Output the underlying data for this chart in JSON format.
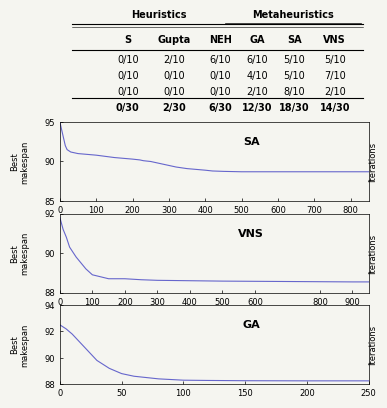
{
  "table_headers": [
    "S",
    "Gupta",
    "NEH",
    "GA",
    "SA",
    "VNS"
  ],
  "table_rows": [
    [
      "0/10",
      "2/10",
      "6/10",
      "6/10",
      "5/10",
      "5/10"
    ],
    [
      "0/10",
      "0/10",
      "0/10",
      "4/10",
      "5/10",
      "7/10"
    ],
    [
      "0/10",
      "0/10",
      "0/10",
      "2/10",
      "8/10",
      "2/10"
    ],
    [
      "0/30",
      "2/30",
      "6/30",
      "12/30",
      "18/30",
      "14/30"
    ]
  ],
  "sa_curve": {
    "x": [
      0,
      5,
      10,
      15,
      20,
      30,
      50,
      100,
      150,
      200,
      220,
      230,
      250,
      300,
      320,
      350,
      400,
      420,
      450,
      500,
      800,
      850
    ],
    "y": [
      95,
      94,
      93,
      92,
      91.5,
      91.2,
      91,
      90.8,
      90.5,
      90.3,
      90.2,
      90.1,
      90.0,
      89.5,
      89.3,
      89.1,
      88.9,
      88.8,
      88.75,
      88.7,
      88.7,
      88.7
    ],
    "ylabel": "Best\nmakespan",
    "label": "SA",
    "xlim": [
      0,
      850
    ],
    "ylim": [
      85,
      95
    ],
    "xticks": [
      0,
      100,
      200,
      300,
      400,
      500,
      600,
      700,
      800
    ],
    "yticks": [
      85,
      90,
      95
    ],
    "color": "#6666cc"
  },
  "vns_curve": {
    "x": [
      0,
      5,
      10,
      20,
      30,
      50,
      80,
      100,
      150,
      200,
      250,
      300,
      400,
      500,
      600,
      700,
      800,
      900,
      950
    ],
    "y": [
      91.8,
      91.5,
      91.2,
      90.8,
      90.3,
      89.8,
      89.2,
      88.9,
      88.7,
      88.7,
      88.65,
      88.62,
      88.6,
      88.58,
      88.57,
      88.56,
      88.55,
      88.54,
      88.54
    ],
    "ylabel": "Best\nmakespan",
    "label": "VNS",
    "xlim": [
      0,
      950
    ],
    "ylim": [
      88,
      92
    ],
    "xticks": [
      0,
      100,
      200,
      300,
      400,
      500,
      600,
      800,
      900
    ],
    "yticks": [
      88,
      90,
      92
    ],
    "color": "#6666cc"
  },
  "ga_curve": {
    "x": [
      0,
      5,
      10,
      15,
      20,
      25,
      30,
      40,
      50,
      60,
      70,
      80,
      90,
      100,
      120,
      150,
      200,
      250
    ],
    "y": [
      92.5,
      92.2,
      91.8,
      91.3,
      90.8,
      90.3,
      89.8,
      89.2,
      88.8,
      88.6,
      88.5,
      88.4,
      88.35,
      88.3,
      88.28,
      88.26,
      88.25,
      88.25
    ],
    "ylabel": "Best\nmakespan",
    "label": "GA",
    "xlim": [
      0,
      250
    ],
    "ylim": [
      88,
      94
    ],
    "xticks": [
      0,
      50,
      100,
      150,
      200,
      250
    ],
    "yticks": [
      88,
      90,
      92,
      94
    ],
    "color": "#6666cc"
  },
  "right_label": "Iterations",
  "bg_color": "#f5f5f0",
  "heuristics_label": "Heuristics",
  "metaheuristics_label": "Metaheuristics"
}
